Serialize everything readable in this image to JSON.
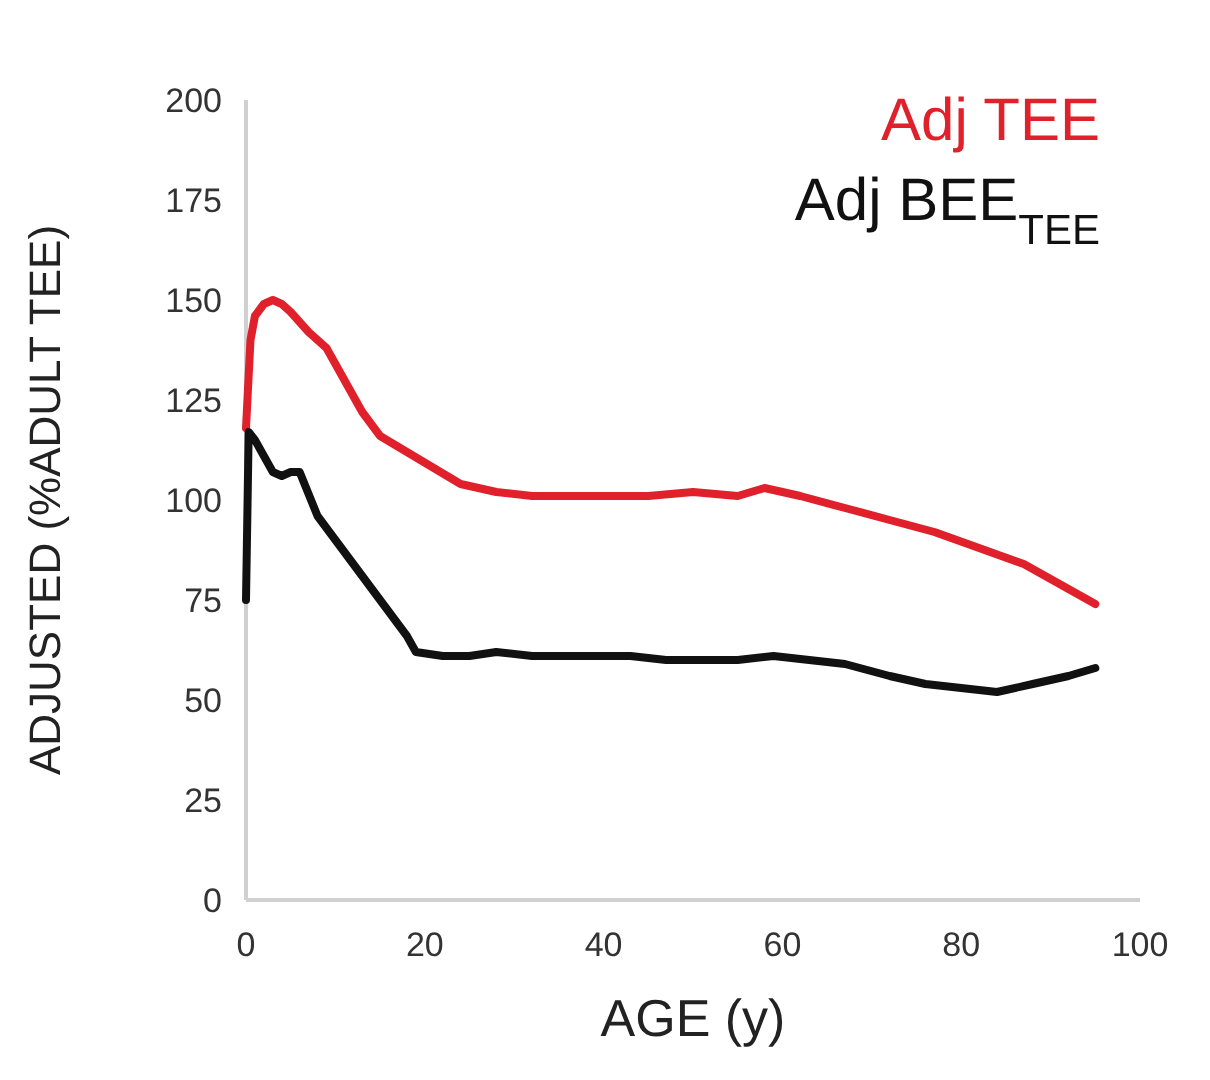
{
  "chart_data": {
    "type": "line",
    "xlabel": "AGE (y)",
    "ylabel": "ADJUSTED (%ADULT TEE)",
    "xlim": [
      0,
      100
    ],
    "xticks": [
      0,
      20,
      40,
      60,
      80,
      100
    ],
    "ylim": [
      0,
      200
    ],
    "yticks": [
      0,
      25,
      50,
      75,
      100,
      125,
      150,
      175,
      200
    ],
    "legend": "top right",
    "marker": "none",
    "line_style": "solid",
    "series": [
      {
        "name": "Adj TEE",
        "color": "#e0202a",
        "x": [
          0,
          0.5,
          1,
          2,
          3,
          4,
          5,
          7,
          9,
          11,
          13,
          15,
          18,
          21,
          24,
          28,
          32,
          36,
          40,
          45,
          50,
          55,
          58,
          62,
          67,
          72,
          77,
          82,
          87,
          91,
          95
        ],
        "values": [
          118,
          140,
          146,
          149,
          150,
          149,
          147,
          142,
          138,
          130,
          122,
          116,
          112,
          108,
          104,
          102,
          101,
          101,
          101,
          101,
          102,
          101,
          103,
          101,
          98,
          95,
          92,
          88,
          84,
          79,
          74
        ]
      },
      {
        "name": "Adj BEE$_{TEE}$",
        "color": "#111111",
        "x": [
          0,
          0.3,
          1,
          2,
          3,
          4,
          5,
          6,
          8,
          10,
          12,
          14,
          16,
          18,
          19,
          22,
          25,
          28,
          32,
          36,
          40,
          43,
          47,
          51,
          55,
          59,
          63,
          67,
          72,
          76,
          80,
          84,
          88,
          92,
          95
        ],
        "values": [
          75,
          117,
          115,
          111,
          107,
          106,
          107,
          107,
          96,
          90,
          84,
          78,
          72,
          66,
          62,
          61,
          61,
          62,
          61,
          61,
          61,
          61,
          60,
          60,
          60,
          61,
          60,
          59,
          56,
          54,
          53,
          52,
          54,
          56,
          58
        ]
      }
    ]
  }
}
